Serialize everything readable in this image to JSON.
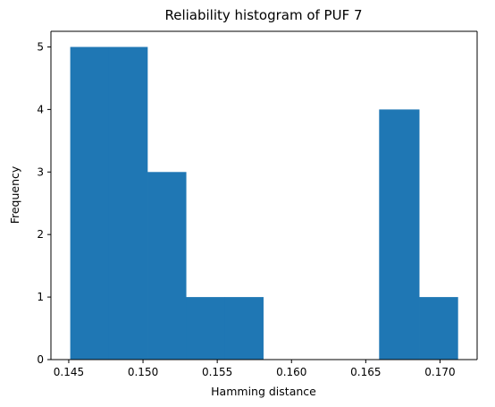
{
  "chart_data": {
    "type": "bar",
    "title": "Reliability histogram of PUF 7",
    "xlabel": "Hamming distance",
    "ylabel": "Frequency",
    "xlim": [
      0.1438,
      0.1725
    ],
    "ylim": [
      0,
      5.25
    ],
    "x_ticks": [
      0.145,
      0.15,
      0.155,
      0.16,
      0.165,
      0.17
    ],
    "x_tick_labels": [
      "0.145",
      "0.150",
      "0.155",
      "0.160",
      "0.165",
      "0.170"
    ],
    "y_ticks": [
      0,
      1,
      2,
      3,
      4,
      5
    ],
    "y_tick_labels": [
      "0",
      "1",
      "2",
      "3",
      "4",
      "5"
    ],
    "grid": false,
    "bin_edges": [
      0.1451,
      0.1477,
      0.1503,
      0.1529,
      0.1555,
      0.1581,
      0.1607,
      0.1633,
      0.1659,
      0.1686,
      0.1712
    ],
    "counts": [
      5,
      5,
      3,
      1,
      1,
      0,
      0,
      0,
      4,
      1
    ],
    "bar_color": "#1f77b4"
  }
}
